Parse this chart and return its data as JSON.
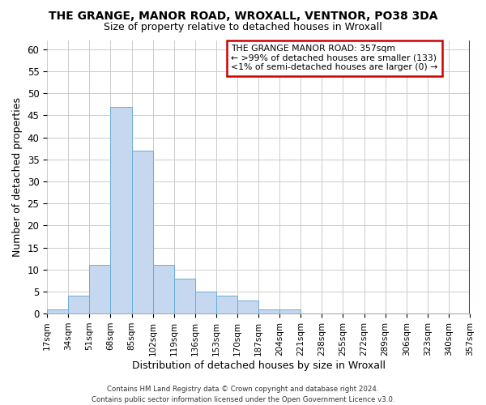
{
  "title": "THE GRANGE, MANOR ROAD, WROXALL, VENTNOR, PO38 3DA",
  "subtitle": "Size of property relative to detached houses in Wroxall",
  "xlabel": "Distribution of detached houses by size in Wroxall",
  "ylabel": "Number of detached properties",
  "bin_labels": [
    "17sqm",
    "34sqm",
    "51sqm",
    "68sqm",
    "85sqm",
    "102sqm",
    "119sqm",
    "136sqm",
    "153sqm",
    "170sqm",
    "187sqm",
    "204sqm",
    "221sqm",
    "238sqm",
    "255sqm",
    "272sqm",
    "289sqm",
    "306sqm",
    "323sqm",
    "340sqm",
    "357sqm"
  ],
  "bar_heights": [
    1,
    4,
    11,
    47,
    37,
    11,
    8,
    5,
    4,
    3,
    1,
    1,
    0,
    0,
    0,
    0,
    0,
    0,
    0,
    0
  ],
  "bar_color": "#c5d8f0",
  "bar_edge_color": "#6aaed6",
  "highlight_line_color": "#dd0000",
  "ylim": [
    0,
    62
  ],
  "yticks": [
    0,
    5,
    10,
    15,
    20,
    25,
    30,
    35,
    40,
    45,
    50,
    55,
    60
  ],
  "annotation_title": "THE GRANGE MANOR ROAD: 357sqm",
  "annotation_line1": "← >99% of detached houses are smaller (133)",
  "annotation_line2": "<1% of semi-detached houses are larger (0) →",
  "annotation_box_color": "#ffffff",
  "annotation_box_edge_color": "#cc0000",
  "footer": "Contains HM Land Registry data © Crown copyright and database right 2024.\nContains public sector information licensed under the Open Government Licence v3.0.",
  "background_color": "#ffffff",
  "grid_color": "#cccccc"
}
